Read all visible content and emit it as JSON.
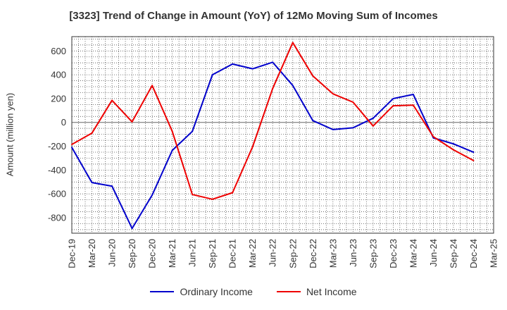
{
  "chart_data": {
    "type": "line",
    "title": "[3323]  Trend of Change in Amount (YoY) of 12Mo Moving Sum of Incomes",
    "ylabel": "Amount (million yen)",
    "xlabel": "",
    "ylim": [
      -930,
      720
    ],
    "yticks": [
      600,
      400,
      200,
      0,
      -200,
      -400,
      -600,
      -800
    ],
    "grid": true,
    "legend_position": "bottom",
    "categories": [
      "Dec-19",
      "Mar-20",
      "Jun-20",
      "Sep-20",
      "Dec-20",
      "Mar-21",
      "Jun-21",
      "Sep-21",
      "Dec-21",
      "Mar-22",
      "Jun-22",
      "Sep-22",
      "Dec-22",
      "Mar-23",
      "Jun-23",
      "Sep-23",
      "Dec-23",
      "Mar-24",
      "Jun-24",
      "Sep-24",
      "Dec-24",
      "Mar-25"
    ],
    "series": [
      {
        "name": "Ordinary Income",
        "color": "#0000cc",
        "values": [
          -210,
          -505,
          -535,
          -890,
          -610,
          -235,
          -75,
          400,
          490,
          450,
          505,
          310,
          15,
          -60,
          -45,
          35,
          200,
          235,
          -130,
          -180,
          -250,
          null
        ]
      },
      {
        "name": "Net Income",
        "color": "#ee0000",
        "values": [
          -185,
          -90,
          185,
          5,
          310,
          -75,
          -605,
          -645,
          -590,
          -205,
          285,
          670,
          390,
          240,
          170,
          -30,
          140,
          145,
          -120,
          -230,
          -320,
          null
        ]
      }
    ]
  }
}
